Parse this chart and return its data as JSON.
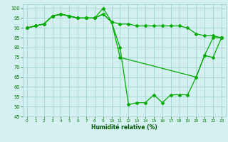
{
  "s1_x": [
    0,
    1,
    2,
    3,
    4,
    5,
    6,
    7,
    8,
    9,
    10,
    11,
    12,
    13,
    14,
    15,
    16,
    17,
    18,
    19,
    20,
    21,
    22,
    23
  ],
  "s1_y": [
    90,
    91,
    92,
    96,
    97,
    96,
    95,
    95,
    95,
    100,
    93,
    80,
    51,
    52,
    52,
    56,
    52,
    56,
    56,
    56,
    65,
    76,
    85,
    85
  ],
  "s2_x": [
    0,
    1,
    2,
    3,
    4,
    5,
    6,
    7,
    8,
    9,
    10,
    11,
    12,
    13,
    14,
    15,
    16,
    17,
    18,
    19,
    20,
    21,
    22,
    23
  ],
  "s2_y": [
    90,
    91,
    92,
    96,
    97,
    96,
    95,
    95,
    95,
    97,
    93,
    92,
    92,
    91,
    91,
    91,
    91,
    91,
    91,
    90,
    87,
    86,
    86,
    85
  ],
  "s3_x": [
    0,
    1,
    2,
    3,
    4,
    5,
    6,
    7,
    8,
    9,
    10,
    11,
    20,
    21,
    22,
    23
  ],
  "s3_y": [
    90,
    91,
    92,
    96,
    97,
    96,
    95,
    95,
    95,
    97,
    93,
    75,
    65,
    76,
    75,
    85
  ],
  "xlabel": "Humidité relative (%)",
  "xlim": [
    -0.5,
    23.5
  ],
  "ylim": [
    45,
    102
  ],
  "yticks": [
    45,
    50,
    55,
    60,
    65,
    70,
    75,
    80,
    85,
    90,
    95,
    100
  ],
  "xticks": [
    0,
    1,
    2,
    3,
    4,
    5,
    6,
    7,
    8,
    9,
    10,
    11,
    12,
    13,
    14,
    15,
    16,
    17,
    18,
    19,
    20,
    21,
    22,
    23
  ],
  "bg_color": "#d4f0f0",
  "grid_color": "#99cccc",
  "line_color": "#00aa00",
  "tick_color": "#007700",
  "xlabel_color": "#005500"
}
